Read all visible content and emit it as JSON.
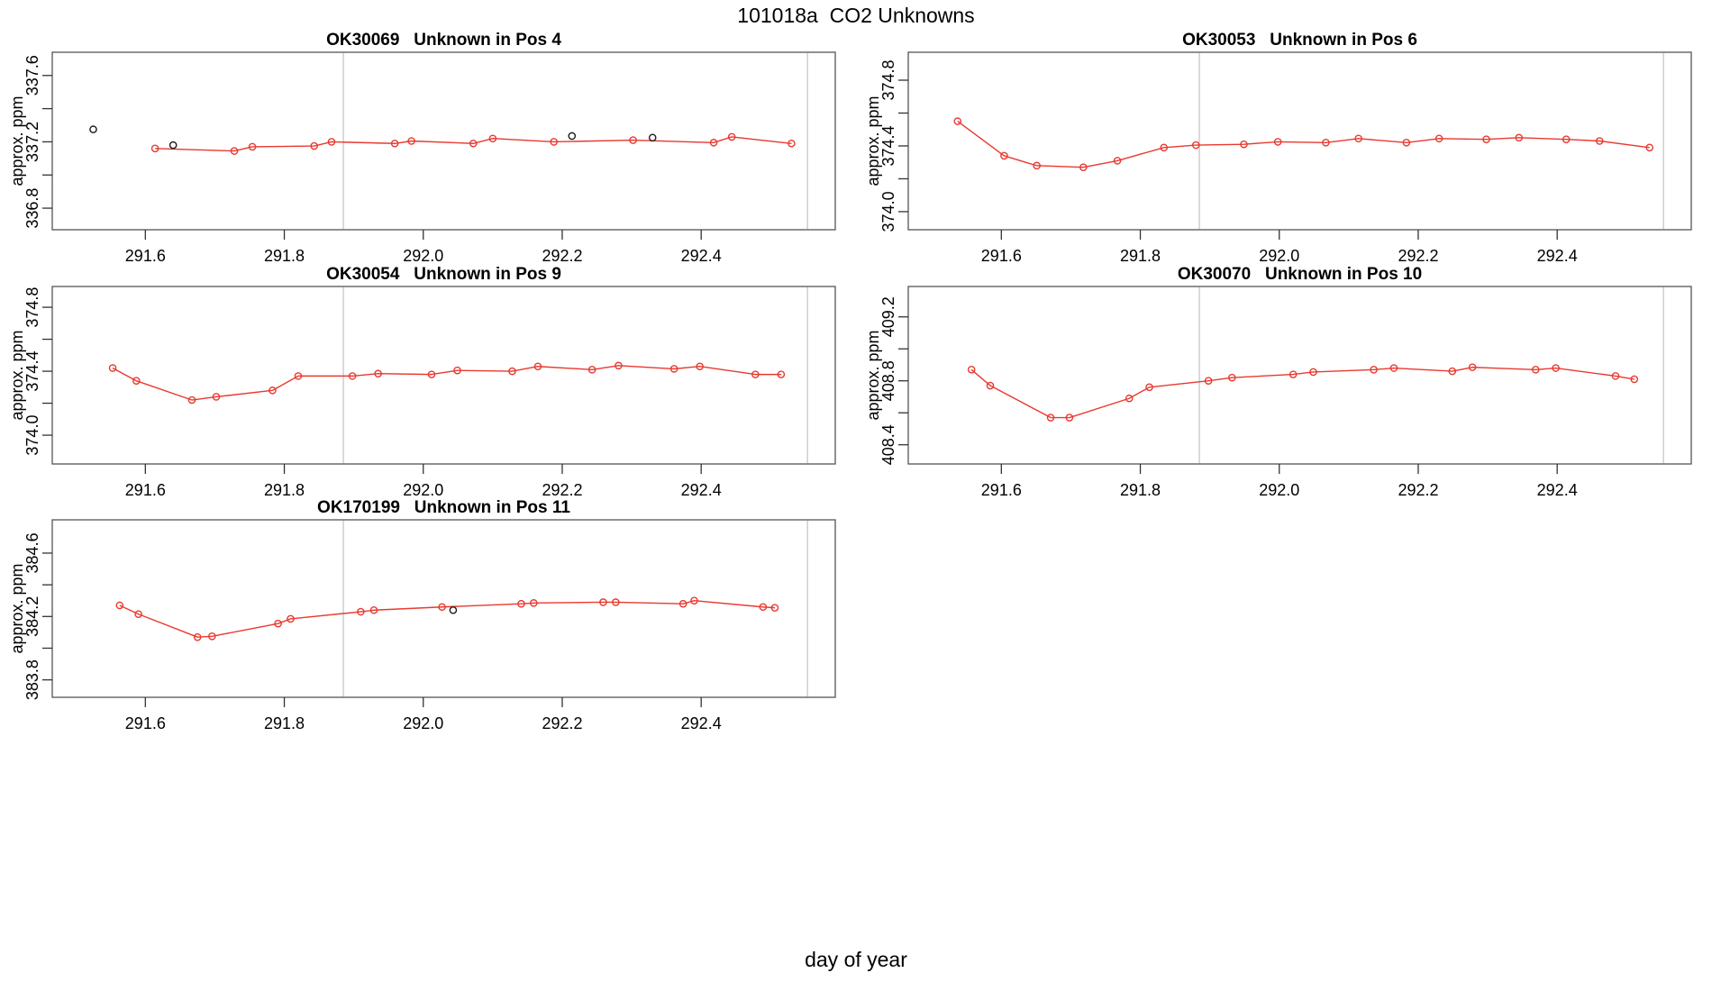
{
  "figure": {
    "title": "101018a  CO2 Unknowns",
    "xlabel": "day of year",
    "background": "#ffffff"
  },
  "style": {
    "series_color": "#e8392f",
    "flag_color": "#1c1c1c",
    "vline_color": "#c6c6c6",
    "axis_color": "#333333",
    "box_color": "#555555",
    "text_color": "#000000"
  },
  "chart_data": [
    {
      "type": "line",
      "title": "OK30069   Unknown in Pos 4",
      "ylabel": "approx. ppm",
      "xlim": [
        291.466,
        292.593
      ],
      "ylim": [
        336.67,
        337.74
      ],
      "xticks": [
        {
          "v": 291.6,
          "label": "291.6"
        },
        {
          "v": 291.8,
          "label": "291.8"
        },
        {
          "v": 292.0,
          "label": "292.0"
        },
        {
          "v": 292.2,
          "label": "292.2"
        },
        {
          "v": 292.4,
          "label": "292.4"
        }
      ],
      "yticks": [
        {
          "v": 336.8,
          "label": "336.8"
        },
        {
          "v": 337.0,
          "label": ""
        },
        {
          "v": 337.2,
          "label": "337.2"
        },
        {
          "v": 337.4,
          "label": ""
        },
        {
          "v": 337.6,
          "label": "337.6"
        }
      ],
      "vlines": [
        291.885,
        292.553
      ],
      "series": [
        {
          "name": "co2-trace",
          "color": "#e8392f",
          "line": true,
          "x": [
            291.614,
            291.728,
            291.754,
            291.843,
            291.868,
            291.959,
            291.983,
            292.072,
            292.1,
            292.188,
            292.302,
            292.418,
            292.444,
            292.53
          ],
          "y": [
            337.16,
            337.145,
            337.17,
            337.175,
            337.2,
            337.19,
            337.205,
            337.19,
            337.22,
            337.2,
            337.21,
            337.195,
            337.23,
            337.19
          ]
        },
        {
          "name": "flagged-points",
          "color": "#1c1c1c",
          "line": false,
          "x": [
            291.525,
            291.64,
            292.214,
            292.33
          ],
          "y": [
            337.275,
            337.18,
            337.235,
            337.225
          ]
        }
      ]
    },
    {
      "type": "line",
      "title": "OK30053   Unknown in Pos 6",
      "ylabel": "approx. ppm",
      "xlim": [
        291.466,
        292.593
      ],
      "ylim": [
        373.89,
        374.97
      ],
      "xticks": [
        {
          "v": 291.6,
          "label": "291.6"
        },
        {
          "v": 291.8,
          "label": "291.8"
        },
        {
          "v": 292.0,
          "label": "292.0"
        },
        {
          "v": 292.2,
          "label": "292.2"
        },
        {
          "v": 292.4,
          "label": "292.4"
        }
      ],
      "yticks": [
        {
          "v": 374.0,
          "label": "374.0"
        },
        {
          "v": 374.2,
          "label": ""
        },
        {
          "v": 374.4,
          "label": "374.4"
        },
        {
          "v": 374.6,
          "label": ""
        },
        {
          "v": 374.8,
          "label": "374.8"
        }
      ],
      "vlines": [
        291.885,
        292.553
      ],
      "series": [
        {
          "name": "co2-trace",
          "color": "#e8392f",
          "line": true,
          "x": [
            291.537,
            291.604,
            291.651,
            291.718,
            291.767,
            291.834,
            291.88,
            291.949,
            291.998,
            292.067,
            292.114,
            292.183,
            292.23,
            292.298,
            292.345,
            292.413,
            292.461,
            292.533
          ],
          "y": [
            374.55,
            374.34,
            374.28,
            374.27,
            374.31,
            374.39,
            374.405,
            374.41,
            374.425,
            374.42,
            374.445,
            374.42,
            374.445,
            374.44,
            374.45,
            374.44,
            374.43,
            374.39
          ]
        }
      ]
    },
    {
      "type": "line",
      "title": "OK30054   Unknown in Pos 9",
      "ylabel": "approx. ppm",
      "xlim": [
        291.466,
        292.593
      ],
      "ylim": [
        373.82,
        374.93
      ],
      "xticks": [
        {
          "v": 291.6,
          "label": "291.6"
        },
        {
          "v": 291.8,
          "label": "291.8"
        },
        {
          "v": 292.0,
          "label": "292.0"
        },
        {
          "v": 292.2,
          "label": "292.2"
        },
        {
          "v": 292.4,
          "label": "292.4"
        }
      ],
      "yticks": [
        {
          "v": 374.0,
          "label": "374.0"
        },
        {
          "v": 374.2,
          "label": ""
        },
        {
          "v": 374.4,
          "label": "374.4"
        },
        {
          "v": 374.6,
          "label": ""
        },
        {
          "v": 374.8,
          "label": "374.8"
        }
      ],
      "vlines": [
        291.885,
        292.553
      ],
      "series": [
        {
          "name": "co2-trace",
          "color": "#e8392f",
          "line": true,
          "x": [
            291.553,
            291.587,
            291.667,
            291.702,
            291.783,
            291.82,
            291.898,
            291.935,
            292.012,
            292.049,
            292.128,
            292.165,
            292.243,
            292.281,
            292.361,
            292.398,
            292.478,
            292.515
          ],
          "y": [
            374.42,
            374.34,
            374.22,
            374.24,
            374.28,
            374.37,
            374.37,
            374.385,
            374.38,
            374.405,
            374.4,
            374.43,
            374.41,
            374.435,
            374.415,
            374.43,
            374.38,
            374.38
          ]
        }
      ]
    },
    {
      "type": "line",
      "title": "OK30070   Unknown in Pos 10",
      "ylabel": "approx. ppm",
      "xlim": [
        291.466,
        292.593
      ],
      "ylim": [
        408.28,
        409.39
      ],
      "xticks": [
        {
          "v": 291.6,
          "label": "291.6"
        },
        {
          "v": 291.8,
          "label": "291.8"
        },
        {
          "v": 292.0,
          "label": "292.0"
        },
        {
          "v": 292.2,
          "label": "292.2"
        },
        {
          "v": 292.4,
          "label": "292.4"
        }
      ],
      "yticks": [
        {
          "v": 408.4,
          "label": "408.4"
        },
        {
          "v": 408.6,
          "label": ""
        },
        {
          "v": 408.8,
          "label": "408.8"
        },
        {
          "v": 409.0,
          "label": ""
        },
        {
          "v": 409.2,
          "label": "409.2"
        }
      ],
      "vlines": [
        291.885,
        292.553
      ],
      "series": [
        {
          "name": "co2-trace",
          "color": "#e8392f",
          "line": true,
          "x": [
            291.557,
            291.584,
            291.671,
            291.698,
            291.784,
            291.813,
            291.898,
            291.932,
            292.02,
            292.049,
            292.136,
            292.165,
            292.249,
            292.278,
            292.369,
            292.398,
            292.484,
            292.511
          ],
          "y": [
            408.87,
            408.77,
            408.57,
            408.57,
            408.69,
            408.76,
            408.8,
            408.82,
            408.84,
            408.855,
            408.87,
            408.88,
            408.86,
            408.885,
            408.87,
            408.88,
            408.83,
            408.81
          ]
        }
      ]
    },
    {
      "type": "line",
      "title": "OK170199   Unknown in Pos 11",
      "ylabel": "approx. ppm",
      "xlim": [
        291.466,
        292.593
      ],
      "ylim": [
        383.69,
        384.81
      ],
      "xticks": [
        {
          "v": 291.6,
          "label": "291.6"
        },
        {
          "v": 291.8,
          "label": "291.8"
        },
        {
          "v": 292.0,
          "label": "292.0"
        },
        {
          "v": 292.2,
          "label": "292.2"
        },
        {
          "v": 292.4,
          "label": "292.4"
        }
      ],
      "yticks": [
        {
          "v": 383.8,
          "label": "383.8"
        },
        {
          "v": 384.0,
          "label": ""
        },
        {
          "v": 384.2,
          "label": "384.2"
        },
        {
          "v": 384.4,
          "label": ""
        },
        {
          "v": 384.6,
          "label": "384.6"
        }
      ],
      "vlines": [
        291.885,
        292.553
      ],
      "series": [
        {
          "name": "co2-trace",
          "color": "#e8392f",
          "line": true,
          "x": [
            291.563,
            291.59,
            291.675,
            291.696,
            291.791,
            291.809,
            291.91,
            291.929,
            292.027,
            292.141,
            292.159,
            292.259,
            292.277,
            292.374,
            292.39,
            292.489,
            292.506
          ],
          "y": [
            384.27,
            384.215,
            384.07,
            384.075,
            384.155,
            384.185,
            384.23,
            384.24,
            384.26,
            384.28,
            384.285,
            384.29,
            384.29,
            384.28,
            384.3,
            384.26,
            384.255
          ]
        },
        {
          "name": "flagged-points",
          "color": "#1c1c1c",
          "line": false,
          "x": [
            292.043
          ],
          "y": [
            384.24
          ]
        }
      ]
    }
  ]
}
